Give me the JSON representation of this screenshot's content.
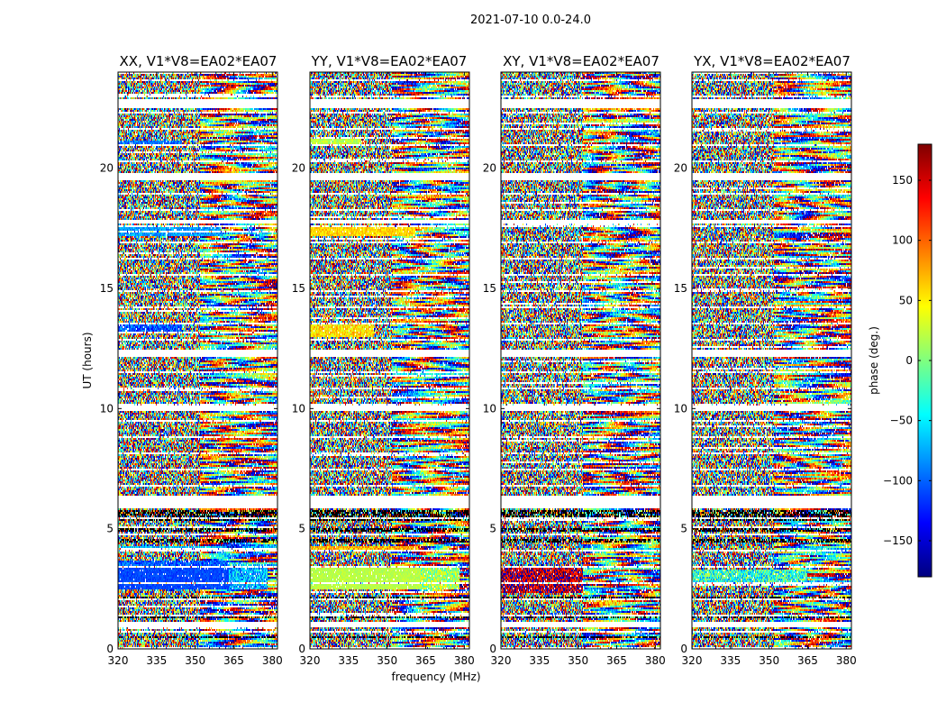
{
  "chart_data": {
    "type": "heatmap",
    "title": "2021-07-10 0.0-24.0",
    "xlabel": "frequency (MHz)",
    "ylabel": "UT (hours)",
    "xlim": [
      320,
      382
    ],
    "ylim": [
      0,
      24
    ],
    "xticks": [
      320,
      335,
      350,
      365,
      380
    ],
    "yticks": [
      0,
      5,
      10,
      15,
      20
    ],
    "colorbar": {
      "label": "phase (deg.)",
      "range": [
        -180,
        180
      ],
      "ticks": [
        150,
        100,
        50,
        0,
        -50,
        -100,
        -150
      ],
      "tick_labels": [
        "150",
        "100",
        "50",
        "0",
        "−50",
        "−100",
        "−150"
      ],
      "colormap": "jet",
      "colors": [
        "#00007f",
        "#0000ff",
        "#007fff",
        "#00ffff",
        "#7fff7f",
        "#ffff00",
        "#ff7f00",
        "#ff0000",
        "#7f0000"
      ]
    },
    "flagged_ut_ranges": [
      [
        0.9,
        1.1
      ],
      [
        5.85,
        6.35
      ],
      [
        9.9,
        10.1
      ],
      [
        12.15,
        12.45
      ],
      [
        17.7,
        17.85
      ],
      [
        19.5,
        19.8
      ],
      [
        22.5,
        22.85
      ]
    ],
    "dark_scan_bands": [
      [
        5.3,
        5.75
      ],
      [
        4.85,
        5.0
      ],
      [
        4.45,
        4.6
      ],
      [
        1.25,
        1.4
      ],
      [
        2.1,
        2.2
      ],
      [
        0.45,
        0.55
      ]
    ],
    "panels": [
      {
        "name": "XX, V1*V8=EA02*EA07",
        "coherent_blocks": [
          {
            "ut": [
              2.5,
              3.4
            ],
            "freq": [
              320,
              363
            ],
            "phase": -110,
            "spread": 12
          },
          {
            "ut": [
              2.5,
              3.4
            ],
            "freq": [
              363,
              378
            ],
            "phase": -70,
            "spread": 45
          },
          {
            "ut": [
              3.4,
              3.7
            ],
            "freq": [
              320,
              363
            ],
            "phase": -105,
            "spread": 30
          },
          {
            "ut": [
              13.1,
              13.55
            ],
            "freq": [
              320,
              345
            ],
            "phase": -105,
            "spread": 35
          },
          {
            "ut": [
              17.2,
              17.6
            ],
            "freq": [
              320,
              360
            ],
            "phase": -80,
            "spread": 25
          },
          {
            "ut": [
              20.95,
              21.15
            ],
            "freq": [
              320,
              345
            ],
            "phase": -95,
            "spread": 25
          },
          {
            "ut": [
              4.1,
              4.3
            ],
            "freq": [
              320,
              362
            ],
            "phase": -60,
            "spread": 40
          }
        ]
      },
      {
        "name": "YY, V1*V8=EA02*EA07",
        "coherent_blocks": [
          {
            "ut": [
              2.5,
              3.4
            ],
            "freq": [
              320,
              363
            ],
            "phase": 20,
            "spread": 10
          },
          {
            "ut": [
              2.5,
              3.4
            ],
            "freq": [
              363,
              378
            ],
            "phase": 10,
            "spread": 45
          },
          {
            "ut": [
              13.0,
              13.55
            ],
            "freq": [
              320,
              345
            ],
            "phase": 55,
            "spread": 30
          },
          {
            "ut": [
              17.2,
              17.55
            ],
            "freq": [
              320,
              361
            ],
            "phase": 60,
            "spread": 20
          },
          {
            "ut": [
              20.95,
              21.2
            ],
            "freq": [
              320,
              340
            ],
            "phase": 20,
            "spread": 20
          },
          {
            "ut": [
              4.1,
              4.3
            ],
            "freq": [
              320,
              362
            ],
            "phase": 70,
            "spread": 35
          }
        ]
      },
      {
        "name": "XY, V1*V8=EA02*EA07",
        "coherent_blocks": [
          {
            "ut": [
              2.3,
              3.4
            ],
            "freq": [
              320,
              352
            ],
            "phase": 160,
            "spread": 55
          }
        ]
      },
      {
        "name": "YX, V1*V8=EA02*EA07",
        "coherent_blocks": [
          {
            "ut": [
              2.8,
              3.3
            ],
            "freq": [
              320,
              365
            ],
            "phase": -30,
            "spread": 60
          }
        ]
      }
    ]
  }
}
